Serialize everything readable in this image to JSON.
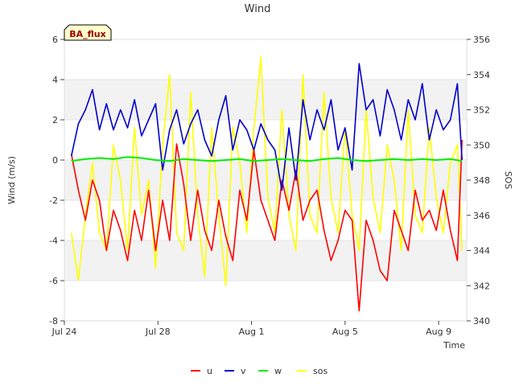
{
  "chart_data": {
    "type": "line",
    "title": "Wind",
    "station_label": "BA_flux",
    "xlabel": "Time",
    "ylabel": "Wind (m/s)",
    "y2label": "SOS",
    "x_range_days": [
      0,
      17.2
    ],
    "x_ticks": [
      {
        "day": 0,
        "label": "Jul 24"
      },
      {
        "day": 4,
        "label": "Jul 28"
      },
      {
        "day": 8,
        "label": "Aug 1"
      },
      {
        "day": 12,
        "label": "Aug 5"
      },
      {
        "day": 16,
        "label": "Aug 9"
      }
    ],
    "ylim": [
      -8,
      6
    ],
    "y_ticks": [
      -8,
      -6,
      -4,
      -2,
      0,
      2,
      4,
      6
    ],
    "y2lim": [
      340,
      356
    ],
    "y2_ticks": [
      340,
      342,
      344,
      346,
      348,
      350,
      352,
      354,
      356
    ],
    "bands": [
      [
        2,
        4
      ],
      [
        -2,
        0
      ],
      [
        -6,
        -4
      ]
    ],
    "legend": [
      {
        "key": "u",
        "label": "u",
        "color": "#ff0000"
      },
      {
        "key": "v",
        "label": "v",
        "color": "#0000cc"
      },
      {
        "key": "w",
        "label": "w",
        "color": "#00ee00"
      },
      {
        "key": "sos",
        "label": "sos",
        "color": "#ffff00"
      }
    ],
    "series": [
      {
        "name": "u",
        "axis": "left",
        "color": "#ff0000",
        "x": [
          0.3,
          0.6,
          0.9,
          1.2,
          1.5,
          1.8,
          2.1,
          2.4,
          2.7,
          3.0,
          3.3,
          3.6,
          3.9,
          4.2,
          4.5,
          4.8,
          5.1,
          5.4,
          5.7,
          6.0,
          6.3,
          6.6,
          6.9,
          7.2,
          7.5,
          7.8,
          8.1,
          8.4,
          8.7,
          9.0,
          9.3,
          9.6,
          9.9,
          10.2,
          10.5,
          10.8,
          11.1,
          11.4,
          11.7,
          12.0,
          12.3,
          12.6,
          12.9,
          13.2,
          13.5,
          13.8,
          14.1,
          14.4,
          14.7,
          15.0,
          15.3,
          15.6,
          15.9,
          16.2,
          16.5,
          16.8,
          17.0
        ],
        "values": [
          0.3,
          -1.5,
          -3.0,
          -1.0,
          -2.0,
          -4.5,
          -2.5,
          -3.5,
          -5.0,
          -2.5,
          -4.0,
          -1.5,
          -4.5,
          -2.0,
          -4.0,
          0.8,
          -1.2,
          -4.0,
          -1.5,
          -3.5,
          -4.5,
          -2.0,
          -3.8,
          -5.0,
          -1.5,
          -3.0,
          0.5,
          -2.0,
          -3.0,
          -4.0,
          -1.0,
          -2.5,
          -0.5,
          -3.0,
          -2.0,
          -1.5,
          -3.5,
          -5.0,
          -4.0,
          -2.5,
          -3.0,
          -7.5,
          -3.0,
          -4.0,
          -5.5,
          -6.0,
          -2.5,
          -3.5,
          -4.5,
          -1.5,
          -3.0,
          -2.5,
          -3.5,
          -1.5,
          -3.5,
          -5.0,
          1.0
        ]
      },
      {
        "name": "v",
        "axis": "left",
        "color": "#0000cc",
        "x": [
          0.3,
          0.6,
          0.9,
          1.2,
          1.5,
          1.8,
          2.1,
          2.4,
          2.7,
          3.0,
          3.3,
          3.6,
          3.9,
          4.2,
          4.5,
          4.8,
          5.1,
          5.4,
          5.7,
          6.0,
          6.3,
          6.6,
          6.9,
          7.2,
          7.5,
          7.8,
          8.1,
          8.4,
          8.7,
          9.0,
          9.3,
          9.6,
          9.9,
          10.2,
          10.5,
          10.8,
          11.1,
          11.4,
          11.7,
          12.0,
          12.3,
          12.6,
          12.9,
          13.2,
          13.5,
          13.8,
          14.1,
          14.4,
          14.7,
          15.0,
          15.3,
          15.6,
          15.9,
          16.2,
          16.5,
          16.8,
          17.0
        ],
        "values": [
          0.2,
          1.8,
          2.5,
          3.5,
          1.5,
          2.8,
          1.5,
          2.5,
          1.6,
          3.0,
          1.2,
          2.0,
          2.8,
          -0.5,
          1.5,
          2.5,
          0.8,
          1.8,
          2.5,
          1.0,
          0.2,
          2.0,
          3.2,
          0.5,
          2.0,
          1.5,
          0.5,
          1.8,
          1.0,
          0.5,
          -1.5,
          1.6,
          -1.0,
          3.0,
          1.0,
          2.5,
          1.5,
          3.0,
          0.5,
          1.6,
          -0.5,
          4.8,
          2.5,
          3.0,
          1.2,
          3.5,
          2.5,
          1.0,
          3.0,
          2.0,
          3.8,
          1.0,
          2.5,
          1.5,
          2.0,
          3.8,
          0.0
        ]
      },
      {
        "name": "w",
        "axis": "left",
        "color": "#00ee00",
        "x": [
          0.3,
          0.9,
          1.5,
          2.1,
          2.7,
          3.3,
          3.9,
          4.5,
          5.1,
          5.7,
          6.3,
          6.9,
          7.5,
          8.1,
          8.7,
          9.3,
          9.9,
          10.5,
          11.1,
          11.7,
          12.3,
          12.9,
          13.5,
          14.1,
          14.7,
          15.3,
          15.9,
          16.5,
          17.0
        ],
        "values": [
          -0.05,
          0.05,
          0.1,
          0.05,
          0.15,
          0.1,
          0.0,
          -0.05,
          0.05,
          0.0,
          -0.05,
          0.0,
          0.05,
          -0.05,
          0.0,
          0.05,
          0.0,
          -0.05,
          0.05,
          0.1,
          0.0,
          -0.05,
          0.0,
          0.05,
          0.0,
          0.05,
          0.0,
          0.05,
          -0.05
        ]
      },
      {
        "name": "sos",
        "axis": "right",
        "color": "#ffff00",
        "x": [
          0.3,
          0.6,
          0.9,
          1.2,
          1.5,
          1.8,
          2.1,
          2.4,
          2.7,
          3.0,
          3.3,
          3.6,
          3.9,
          4.2,
          4.5,
          4.8,
          5.1,
          5.4,
          5.7,
          6.0,
          6.3,
          6.6,
          6.9,
          7.2,
          7.5,
          7.8,
          8.1,
          8.4,
          8.7,
          9.0,
          9.3,
          9.6,
          9.9,
          10.2,
          10.5,
          10.8,
          11.1,
          11.4,
          11.7,
          12.0,
          12.3,
          12.6,
          12.9,
          13.2,
          13.5,
          13.8,
          14.1,
          14.4,
          14.7,
          15.0,
          15.3,
          15.6,
          15.9,
          16.2,
          16.5,
          16.8,
          17.0
        ],
        "values": [
          345,
          342.3,
          346,
          349,
          345,
          344,
          350,
          348,
          344,
          351,
          346,
          348,
          343,
          350,
          354,
          345,
          344,
          353,
          346,
          342.5,
          351,
          346,
          342,
          351,
          349,
          345,
          351,
          355,
          347,
          345,
          352,
          346,
          344,
          354,
          346,
          345,
          353,
          347,
          345,
          351,
          346,
          344,
          352,
          347,
          345,
          350,
          348,
          344,
          352,
          346,
          345,
          351,
          347,
          345,
          349,
          350,
          344
        ]
      }
    ]
  }
}
